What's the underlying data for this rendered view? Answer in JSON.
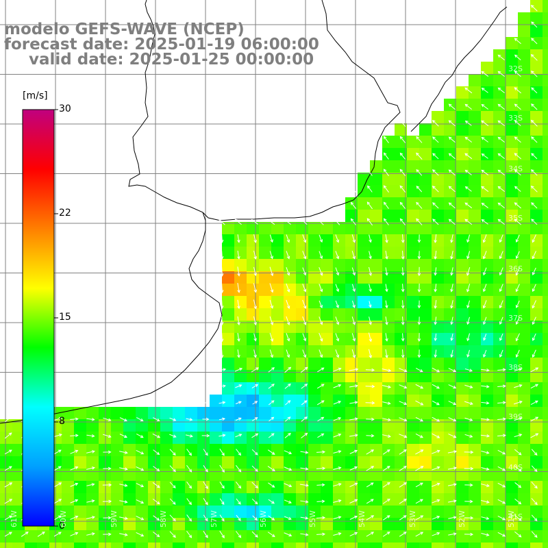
{
  "title": {
    "line1": "modelo GEFS-WAVE (NCEP)",
    "line2": "forecast date: 2025-01-19 06:00:00",
    "line3": "valid date: 2025-01-25 00:00:00"
  },
  "colorbar": {
    "unit": "[m/s]",
    "ticks": [
      "30",
      "22",
      "15",
      "8",
      "0"
    ],
    "stops": [
      "#0000ff",
      "#00a0ff",
      "#00ffff",
      "#00ff00",
      "#ffff00",
      "#ff7f00",
      "#ff0000",
      "#c0007f"
    ]
  },
  "map": {
    "lat_labels": [
      "32S",
      "33S",
      "34S",
      "35S",
      "36S",
      "37S",
      "38S",
      "39S",
      "40S",
      "41S"
    ],
    "lon_labels": [
      "61W",
      "60W",
      "59W",
      "58W",
      "57W",
      "56W",
      "55W",
      "54W",
      "53W",
      "52W",
      "51W"
    ]
  }
}
